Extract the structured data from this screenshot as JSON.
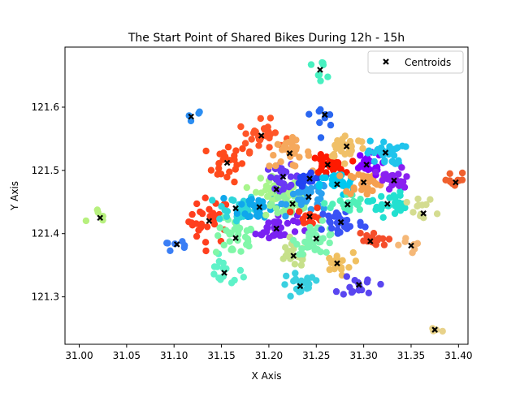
{
  "chart_data": {
    "type": "scatter",
    "title": "The Start Point of Shared Bikes During 12h - 15h",
    "xlabel": "X Axis",
    "ylabel": "Y Axis",
    "xlim": [
      30.985,
      31.41
    ],
    "ylim": [
      121.225,
      121.695
    ],
    "xticks": [
      "31.00",
      "31.05",
      "31.10",
      "31.15",
      "31.20",
      "31.25",
      "31.30",
      "31.35",
      "31.40"
    ],
    "yticks": [
      "121.3",
      "121.4",
      "121.5",
      "121.6"
    ],
    "xtick_values": [
      31.0,
      31.05,
      31.1,
      31.15,
      31.2,
      31.25,
      31.3,
      31.35,
      31.4
    ],
    "ytick_values": [
      121.3,
      121.4,
      121.5,
      121.6
    ],
    "grid": false,
    "legend": {
      "position": "top-right",
      "entries": [
        "Centroids"
      ]
    },
    "colormap": "rainbow",
    "centroid_marker": {
      "name": "Centroids",
      "color": "#000000",
      "shape": "x"
    },
    "clusters": [
      {
        "center": [
          31.022,
          121.425
        ],
        "color": "#b7f07e",
        "spread": [
          0.012,
          0.015
        ],
        "count": 6
      },
      {
        "center": [
          31.103,
          121.383
        ],
        "color": "#3a7ef5",
        "spread": [
          0.015,
          0.012
        ],
        "count": 7
      },
      {
        "center": [
          31.118,
          121.585
        ],
        "color": "#2c8ef2",
        "spread": [
          0.012,
          0.01
        ],
        "count": 4
      },
      {
        "center": [
          31.137,
          121.42
        ],
        "color": "#ff3f1e",
        "spread": [
          0.018,
          0.03
        ],
        "count": 28
      },
      {
        "center": [
          31.156,
          121.512
        ],
        "color": "#ff4a1c",
        "spread": [
          0.018,
          0.025
        ],
        "count": 22
      },
      {
        "center": [
          31.153,
          121.338
        ],
        "color": "#5ef2c8",
        "spread": [
          0.016,
          0.02
        ],
        "count": 16
      },
      {
        "center": [
          31.165,
          121.393
        ],
        "color": "#80f7a8",
        "spread": [
          0.018,
          0.025
        ],
        "count": 30
      },
      {
        "center": [
          31.165,
          121.44
        ],
        "color": "#2fd6d9",
        "spread": [
          0.018,
          0.02
        ],
        "count": 30
      },
      {
        "center": [
          31.19,
          121.442
        ],
        "color": "#0fa7ec",
        "spread": [
          0.018,
          0.02
        ],
        "count": 35
      },
      {
        "center": [
          31.192,
          121.555
        ],
        "color": "#ff5528",
        "spread": [
          0.02,
          0.02
        ],
        "count": 28
      },
      {
        "center": [
          31.208,
          121.408
        ],
        "color": "#7a22f2",
        "spread": [
          0.018,
          0.02
        ],
        "count": 35
      },
      {
        "center": [
          31.208,
          121.47
        ],
        "color": "#a8f58c",
        "spread": [
          0.018,
          0.02
        ],
        "count": 35
      },
      {
        "center": [
          31.215,
          121.49
        ],
        "color": "#6a38f5",
        "spread": [
          0.015,
          0.015
        ],
        "count": 25
      },
      {
        "center": [
          31.222,
          121.527
        ],
        "color": "#f5a85c",
        "spread": [
          0.018,
          0.018
        ],
        "count": 30
      },
      {
        "center": [
          31.225,
          121.447
        ],
        "color": "#90f29a",
        "spread": [
          0.018,
          0.02
        ],
        "count": 35
      },
      {
        "center": [
          31.226,
          121.365
        ],
        "color": "#c6e08a",
        "spread": [
          0.015,
          0.015
        ],
        "count": 22
      },
      {
        "center": [
          31.233,
          121.317
        ],
        "color": "#3ad0e0",
        "spread": [
          0.018,
          0.018
        ],
        "count": 22
      },
      {
        "center": [
          31.242,
          121.458
        ],
        "color": "#2aa0f0",
        "spread": [
          0.018,
          0.02
        ],
        "count": 35
      },
      {
        "center": [
          31.243,
          121.487
        ],
        "color": "#2244f2",
        "spread": [
          0.012,
          0.012
        ],
        "count": 20
      },
      {
        "center": [
          31.243,
          121.427
        ],
        "color": "#ff3a1a",
        "spread": [
          0.012,
          0.012
        ],
        "count": 14
      },
      {
        "center": [
          31.25,
          121.392
        ],
        "color": "#7cf5b0",
        "spread": [
          0.018,
          0.02
        ],
        "count": 35
      },
      {
        "center": [
          31.254,
          121.659
        ],
        "color": "#48f0c0",
        "spread": [
          0.012,
          0.012
        ],
        "count": 8
      },
      {
        "center": [
          31.259,
          121.588
        ],
        "color": "#2a66f0",
        "spread": [
          0.012,
          0.015
        ],
        "count": 9
      },
      {
        "center": [
          31.262,
          121.509
        ],
        "color": "#ff1a00",
        "spread": [
          0.014,
          0.012
        ],
        "count": 30
      },
      {
        "center": [
          31.272,
          121.353
        ],
        "color": "#f0c060",
        "spread": [
          0.014,
          0.014
        ],
        "count": 18
      },
      {
        "center": [
          31.272,
          121.478
        ],
        "color": "#00c8f0",
        "spread": [
          0.015,
          0.015
        ],
        "count": 30
      },
      {
        "center": [
          31.276,
          121.418
        ],
        "color": "#3a52f5",
        "spread": [
          0.02,
          0.02
        ],
        "count": 35
      },
      {
        "center": [
          31.282,
          121.538
        ],
        "color": "#f0c068",
        "spread": [
          0.018,
          0.016
        ],
        "count": 30
      },
      {
        "center": [
          31.283,
          121.446
        ],
        "color": "#50f0b8",
        "spread": [
          0.014,
          0.014
        ],
        "count": 22
      },
      {
        "center": [
          31.295,
          121.319
        ],
        "color": "#5a46f0",
        "spread": [
          0.016,
          0.015
        ],
        "count": 16
      },
      {
        "center": [
          31.3,
          121.481
        ],
        "color": "#f5a050",
        "spread": [
          0.016,
          0.016
        ],
        "count": 30
      },
      {
        "center": [
          31.303,
          121.509
        ],
        "color": "#7f00ff",
        "spread": [
          0.014,
          0.014
        ],
        "count": 24
      },
      {
        "center": [
          31.307,
          121.388
        ],
        "color": "#f54d2a",
        "spread": [
          0.014,
          0.014
        ],
        "count": 16
      },
      {
        "center": [
          31.323,
          121.528
        ],
        "color": "#20c4ec",
        "spread": [
          0.016,
          0.016
        ],
        "count": 30
      },
      {
        "center": [
          31.325,
          121.447
        ],
        "color": "#22e0d0",
        "spread": [
          0.016,
          0.016
        ],
        "count": 28
      },
      {
        "center": [
          31.332,
          121.484
        ],
        "color": "#8a20f0",
        "spread": [
          0.016,
          0.016
        ],
        "count": 25
      },
      {
        "center": [
          31.35,
          121.381
        ],
        "color": "#f5b878",
        "spread": [
          0.01,
          0.012
        ],
        "count": 7
      },
      {
        "center": [
          31.363,
          121.432
        ],
        "color": "#d4dc90",
        "spread": [
          0.014,
          0.02
        ],
        "count": 12
      },
      {
        "center": [
          31.375,
          121.248
        ],
        "color": "#e8d28a",
        "spread": [
          0.006,
          0.004
        ],
        "count": 4
      },
      {
        "center": [
          31.397,
          121.481
        ],
        "color": "#f0602e",
        "spread": [
          0.012,
          0.015
        ],
        "count": 10
      }
    ]
  }
}
